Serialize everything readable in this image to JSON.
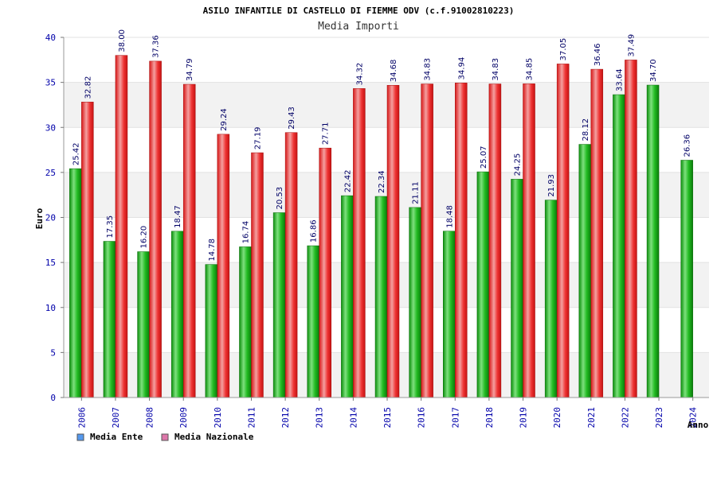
{
  "chart_data": {
    "type": "bar",
    "title": "ASILO INFANTILE DI CASTELLO DI FIEMME ODV (c.f.91002810223)",
    "subtitle": "Media Importi",
    "xlabel": "Anno",
    "ylabel": "Euro",
    "ylim": [
      0,
      40
    ],
    "yticks": [
      0,
      5,
      10,
      15,
      20,
      25,
      30,
      35,
      40
    ],
    "grid": true,
    "legend_position": "bottom-left",
    "categories": [
      "2006",
      "2007",
      "2008",
      "2009",
      "2010",
      "2011",
      "2012",
      "2013",
      "2014",
      "2015",
      "2016",
      "2017",
      "2018",
      "2019",
      "2020",
      "2021",
      "2022",
      "2023",
      "2024"
    ],
    "series": [
      {
        "name": "Media Ente",
        "color": "#22bb22",
        "legend_color": "#5599ee",
        "values": [
          25.42,
          17.35,
          16.2,
          18.47,
          14.78,
          16.74,
          20.53,
          16.86,
          22.42,
          22.34,
          21.11,
          18.48,
          25.07,
          24.25,
          21.93,
          28.12,
          33.64,
          34.7,
          26.36
        ],
        "labels": [
          "25.42",
          "17.35",
          "16.20",
          "18.47",
          "14.78",
          "16.74",
          "20.53",
          "16.86",
          "22.42",
          "22.34",
          "21.11",
          "18.48",
          "25.07",
          "24.25",
          "21.93",
          "28.12",
          "33.64",
          "34.70",
          "26.36"
        ]
      },
      {
        "name": "Media Nazionale",
        "color": "#ee2222",
        "legend_color": "#dd77aa",
        "values": [
          32.82,
          38.0,
          37.36,
          34.79,
          29.24,
          27.19,
          29.43,
          27.71,
          34.32,
          34.68,
          34.83,
          34.94,
          34.83,
          34.85,
          37.05,
          36.46,
          37.49,
          null,
          null
        ],
        "labels": [
          "32.82",
          "38.00",
          "37.36",
          "34.79",
          "29.24",
          "27.19",
          "29.43",
          "27.71",
          "34.32",
          "34.68",
          "34.83",
          "34.94",
          "34.83",
          "34.85",
          "37.05",
          "36.46",
          "37.49",
          null,
          null
        ]
      }
    ]
  }
}
